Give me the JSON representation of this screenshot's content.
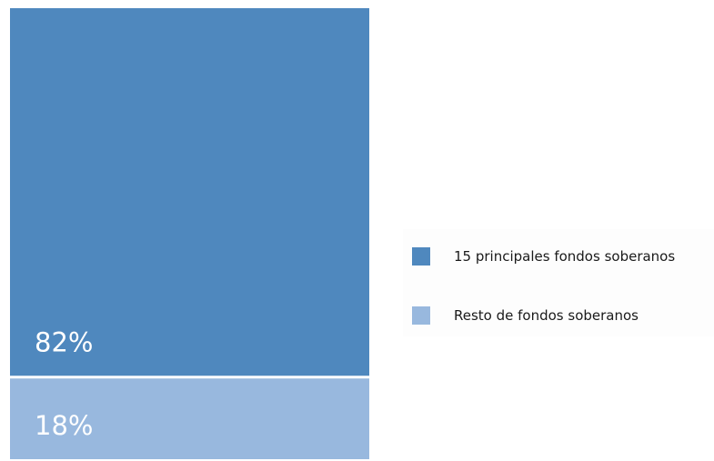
{
  "chart_data": {
    "type": "bar",
    "stacked": true,
    "categories": [
      ""
    ],
    "series": [
      {
        "name": "15 principales fondos soberanos",
        "values": [
          82
        ],
        "label": "82%",
        "color": "#4f88be"
      },
      {
        "name": "Resto de fondos soberanos",
        "values": [
          18
        ],
        "label": "18%",
        "color": "#98b8de"
      }
    ],
    "unit": "%",
    "ylim": [
      0,
      100
    ],
    "grid": false,
    "legend_position": "right"
  }
}
